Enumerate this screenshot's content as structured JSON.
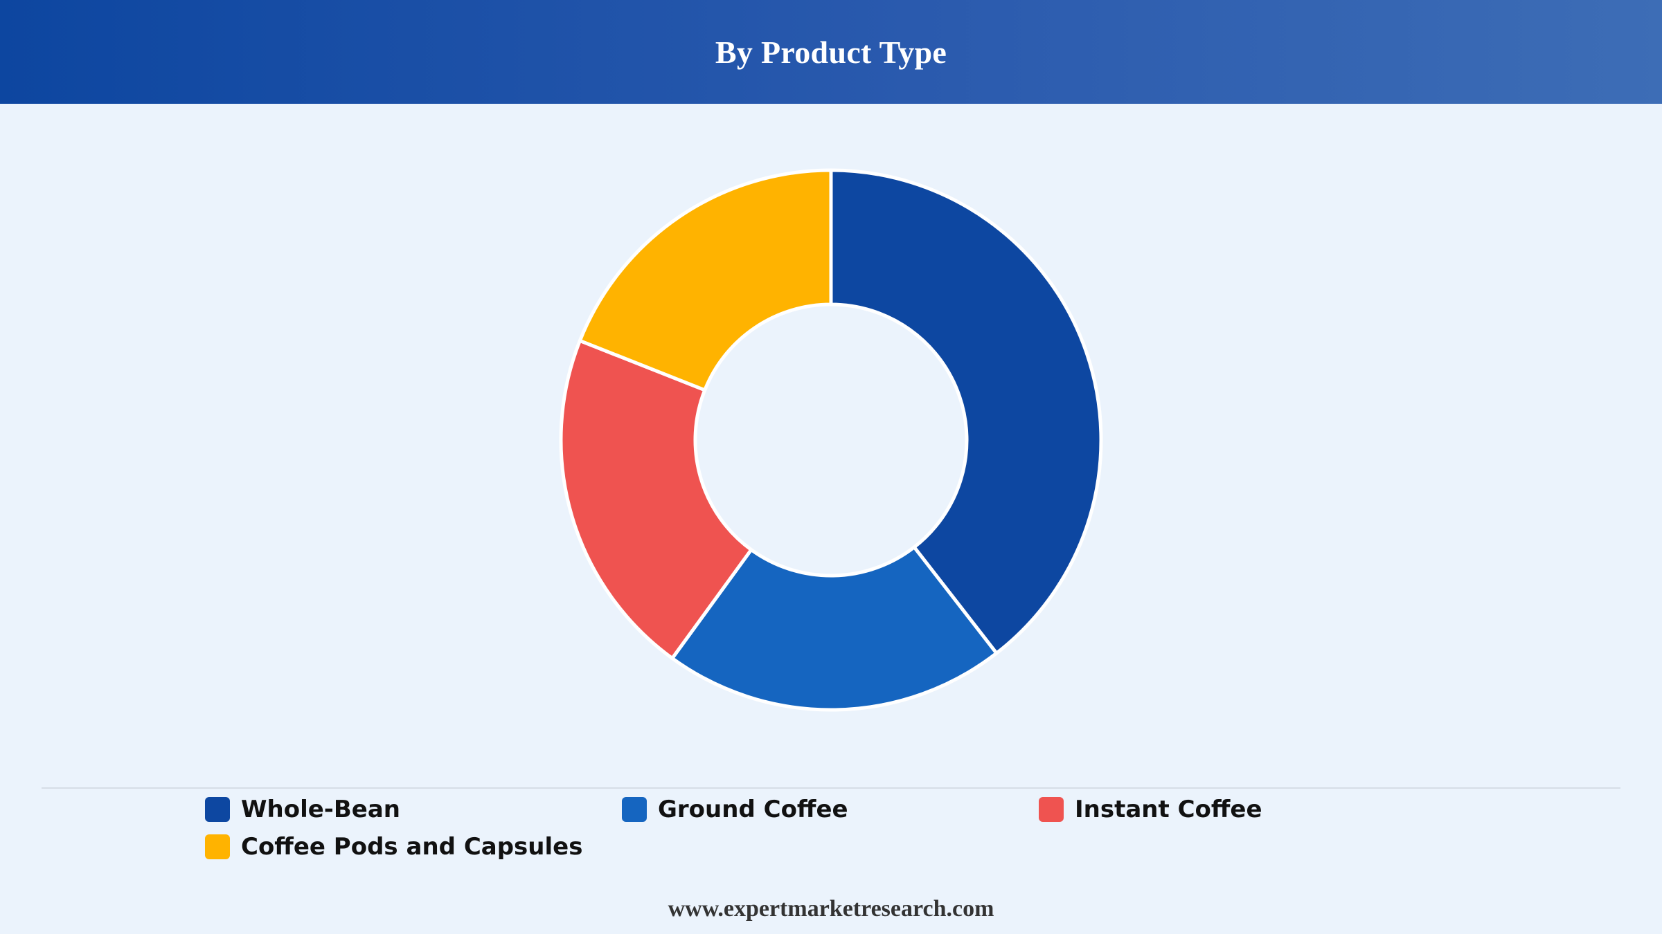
{
  "header": {
    "title": "By Product Type"
  },
  "chart_data": {
    "type": "pie",
    "title": "By Product Type",
    "donut": true,
    "legend_position": "bottom",
    "categories": [
      "Whole-Bean",
      "Ground Coffee",
      "Instant Coffee",
      "Coffee Pods and Capsules"
    ],
    "values": [
      39.5,
      20.5,
      21.0,
      19.0
    ],
    "unit": "%",
    "colors": [
      "#0d47a1",
      "#1565c0",
      "#ef5350",
      "#ffb300"
    ],
    "slice_border_color": "#ffffff"
  },
  "legend": {
    "items": [
      {
        "label": "Whole-Bean",
        "color": "#0d47a1"
      },
      {
        "label": "Ground Coffee",
        "color": "#1565c0"
      },
      {
        "label": "Instant Coffee",
        "color": "#ef5350"
      },
      {
        "label": "Coffee Pods and Capsules",
        "color": "#ffb300"
      }
    ]
  },
  "footer": {
    "source": "www.expertmarketresearch.com"
  }
}
